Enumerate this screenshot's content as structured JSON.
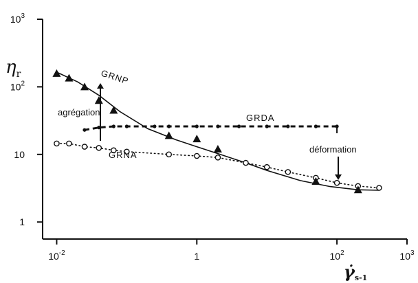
{
  "chart_data": {
    "type": "line",
    "x_scale": "log",
    "y_scale": "log",
    "xlim": [
      0.0063,
      1000
    ],
    "ylim": [
      0.56,
      1000
    ],
    "grid": false,
    "ylabel": "ηr",
    "ylabel_main": "η",
    "ylabel_sub": "r",
    "xlabel": "γ̇ s-1",
    "xlabel_main": "γ̇",
    "xlabel_sub": "s-1",
    "x_ticks": [
      {
        "value": 0.01,
        "base": "10",
        "exp": "-2"
      },
      {
        "value": 1,
        "base": "1",
        "exp": ""
      },
      {
        "value": 100,
        "base": "10",
        "exp": "2"
      },
      {
        "value": 1000,
        "base": "10",
        "exp": "3"
      }
    ],
    "y_ticks": [
      {
        "value": 1,
        "base": "1",
        "exp": ""
      },
      {
        "value": 10,
        "base": "10",
        "exp": ""
      },
      {
        "value": 100,
        "base": "10",
        "exp": "2"
      },
      {
        "value": 1000,
        "base": "10",
        "exp": "3"
      }
    ],
    "series": [
      {
        "name": "GRNP",
        "marker": "triangle",
        "line": "solid",
        "x": [
          0.01,
          0.015,
          0.025,
          0.04,
          0.065,
          0.4,
          1,
          2,
          50,
          200
        ],
        "y": [
          158,
          135,
          100,
          63,
          45,
          19,
          17,
          12,
          4,
          3
        ],
        "curve_x": [
          0.01,
          0.02,
          0.04,
          0.08,
          0.2,
          0.5,
          1,
          2,
          5,
          10,
          30,
          80,
          200,
          400
        ],
        "curve_y": [
          165,
          118,
          75,
          43,
          24,
          16.5,
          13,
          10.3,
          7.5,
          5.8,
          4.1,
          3.35,
          3.0,
          2.95
        ]
      },
      {
        "name": "GRDA",
        "marker": "dot",
        "line": "dashed",
        "x": [
          0.025,
          0.04,
          0.065,
          0.1,
          0.25,
          0.4,
          1,
          2,
          4,
          10,
          20,
          50,
          100
        ],
        "y": [
          23,
          25,
          26,
          26,
          26,
          26,
          26,
          26,
          26,
          26,
          26,
          26,
          26
        ]
      },
      {
        "name": "GRNA",
        "marker": "circle",
        "line": "dotted",
        "x": [
          0.01,
          0.015,
          0.025,
          0.04,
          0.065,
          0.1,
          0.4,
          1,
          2,
          5,
          10,
          20,
          50,
          100,
          200,
          400
        ],
        "y": [
          14.5,
          14.5,
          13,
          12.5,
          11.5,
          11,
          10,
          9.5,
          9,
          7.5,
          6.5,
          5.5,
          4.5,
          3.8,
          3.4,
          3.2
        ]
      }
    ],
    "annotations": {
      "agregation": "agrégation",
      "deformation": "déformation"
    }
  }
}
